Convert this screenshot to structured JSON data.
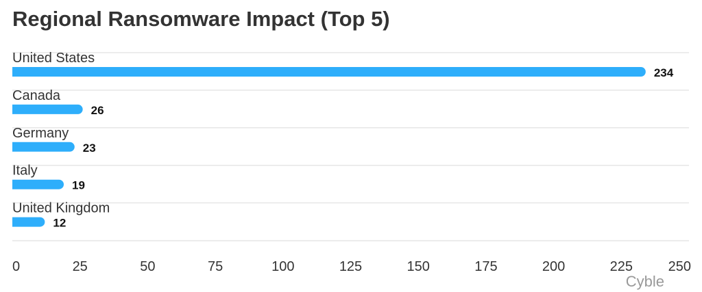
{
  "chart_data": {
    "type": "bar",
    "orientation": "horizontal",
    "title": "Regional Ransomware Impact (Top 5)",
    "categories": [
      "United States",
      "Canada",
      "Germany",
      "Italy",
      "United Kingdom"
    ],
    "values": [
      234,
      26,
      23,
      19,
      12
    ],
    "xlim": [
      0,
      250
    ],
    "xticks": [
      0,
      25,
      50,
      75,
      100,
      125,
      150,
      175,
      200,
      225,
      250
    ],
    "xlabel": "",
    "ylabel": "",
    "grid": true,
    "bar_color": "#2eaefb",
    "data_labels": true
  },
  "watermark": "Cyble"
}
